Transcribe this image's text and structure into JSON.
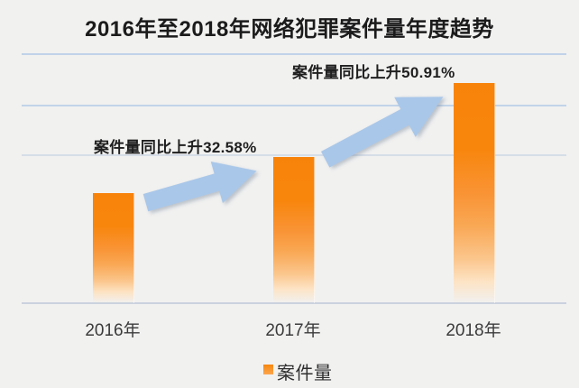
{
  "title": "2016年至2018年网络犯罪案件量年度趋势",
  "chart_data": {
    "type": "bar",
    "title": "2016年至2018年网络犯罪案件量年度趋势",
    "categories": [
      "2016年",
      "2017年",
      "2018年"
    ],
    "series": [
      {
        "name": "案件量",
        "values": [
          100,
          132.58,
          200.08
        ],
        "value_note": "relative index estimated from bar heights; 2016 = 100, y-axis has no tick labels"
      }
    ],
    "yoy_growth": [
      null,
      "+32.58%",
      "+50.91%"
    ],
    "annotations": [
      {
        "text": "案件量同比上升32.58%",
        "target": "2017年"
      },
      {
        "text": "案件量同比上升50.91%",
        "target": "2018年"
      }
    ],
    "legend": {
      "position": "bottom",
      "entries": [
        "案件量"
      ]
    },
    "xlabel": "",
    "ylabel": "",
    "grid": "horizontal, 3 gridlines above x-axis, no y tick labels",
    "colors": {
      "bar_top": "#F8830B",
      "bar_fade": "#FDE3C4",
      "arrow": "#A9C7E9",
      "gridline": "#B7CDE6",
      "background": "#F1F1F0",
      "text": "#1B1B1B"
    }
  },
  "arrows": [
    {
      "name": "growth-arrow-2016-2017",
      "direction": "up-right"
    },
    {
      "name": "growth-arrow-2017-2018",
      "direction": "up-right"
    }
  ]
}
